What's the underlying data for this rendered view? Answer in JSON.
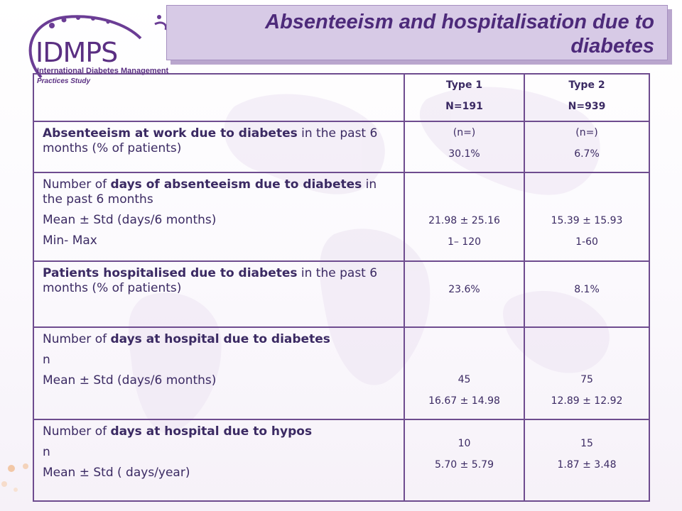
{
  "logo": {
    "brand": "IDMPS",
    "line1": "International Diabetes Management",
    "line2": "Practices Study"
  },
  "title": "Absenteeism and hospitalisation due to diabetes",
  "columns": {
    "type1_name": "Type 1",
    "type1_n": "N=191",
    "type2_name": "Type 2",
    "type2_n": "N=939"
  },
  "rows": [
    {
      "label_bold": "Absenteeism at work due to diabetes",
      "label_rest": " in the past 6 months (% of patients)",
      "t1": [
        "(n=)",
        "30.1%"
      ],
      "t2": [
        "(n=)",
        "6.7%"
      ]
    },
    {
      "label_pre": "Number of ",
      "label_bold": "days of absenteeism due to diabetes",
      "label_rest": " in the past 6 months",
      "sub1": "Mean ± Std (days/6 months)",
      "sub2": "Min- Max",
      "t1": [
        "21.98 ± 25.16",
        "1– 120"
      ],
      "t2": [
        "15.39 ± 15.93",
        "1-60"
      ]
    },
    {
      "label_bold": "Patients hospitalised due to diabetes",
      "label_rest": " in the past 6 months (% of patients)",
      "t1": [
        "23.6%"
      ],
      "t2": [
        "8.1%"
      ]
    },
    {
      "label_pre": "Number of ",
      "label_bold": "days at hospital due to diabetes",
      "sub1": "n",
      "sub2": "Mean ± Std (days/6 months)",
      "t1": [
        "45",
        "16.67 ± 14.98"
      ],
      "t2": [
        "75",
        "12.89 ± 12.92"
      ]
    },
    {
      "label_pre": "Number of ",
      "label_bold": "days at hospital due to hypos",
      "sub1": "n",
      "sub2": "Mean ± Std ( days/year)",
      "t1": [
        "10",
        "5.70 ± 5.79"
      ],
      "t2": [
        "15",
        "1.87 ± 3.48"
      ]
    }
  ]
}
